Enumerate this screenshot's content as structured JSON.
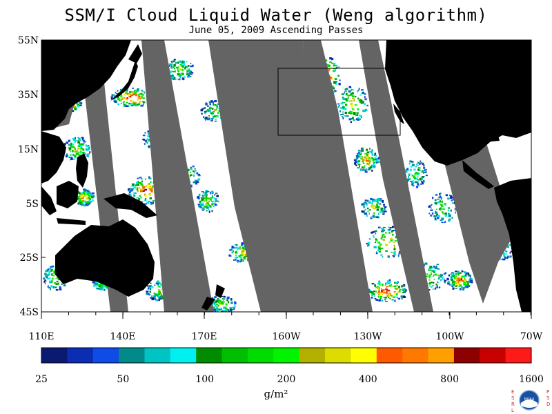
{
  "title": "SSM/I Cloud Liquid Water (Weng algorithm)",
  "subtitle": "June 05, 2009  Ascending Passes",
  "lat_labels": [
    "55N",
    "35N",
    "15N",
    "5S",
    "25S",
    "45S"
  ],
  "lon_labels": [
    "110E",
    "140E",
    "170E",
    "160W",
    "130W",
    "100W",
    "70W"
  ],
  "colorbar": {
    "colors": [
      "#0a1a70",
      "#0a2db4",
      "#0f4be6",
      "#008a8a",
      "#00c4c4",
      "#00f0f0",
      "#008c00",
      "#00be00",
      "#00dc00",
      "#00f400",
      "#b4b000",
      "#dcdc00",
      "#ffff00",
      "#ff5a00",
      "#ff7800",
      "#ffa000",
      "#8c0000",
      "#c80000",
      "#ff1a1a"
    ],
    "labels": [
      "25",
      "50",
      "100",
      "200",
      "400",
      "800",
      "1600"
    ]
  },
  "units": "g/m²",
  "logo": {
    "name": "noaa-logo",
    "text_left": "ESRL",
    "text_right": "PSD",
    "center": "NOAA"
  },
  "colors": {
    "land": "#000000",
    "no_data": "#646464",
    "ocean_clear": "#ffffff"
  }
}
